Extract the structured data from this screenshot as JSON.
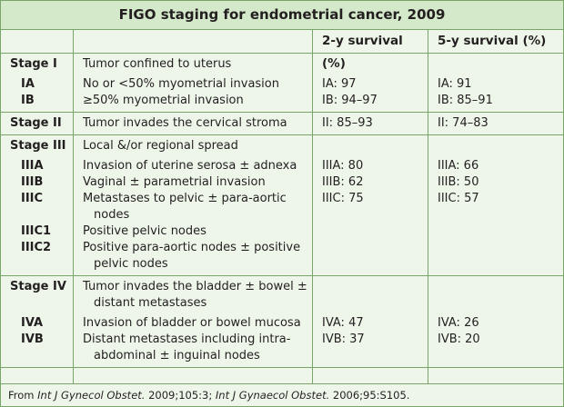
{
  "title": "FIGO staging for endometrial cancer, 2009",
  "columns": [
    "2-y survival (%)",
    "5-y survival (%)"
  ],
  "groups": [
    {
      "stage": "Stage I",
      "description": "Tumor confined to uterus",
      "substages": [
        {
          "stage": "IA",
          "description": "No or <50% myometrial invasion",
          "two_year": "IA: 97",
          "five_year": "IA: 91"
        },
        {
          "stage": "IB",
          "description": "≥50% myometrial invasion",
          "two_year": "IB: 94–97",
          "five_year": "IB: 85–91"
        }
      ]
    },
    {
      "stage": "Stage II",
      "description": "Tumor invades the cervical stroma",
      "two_year": "II: 85–93",
      "five_year": "II: 74–83",
      "substages": []
    },
    {
      "stage": "Stage III",
      "description": "Local &/or regional spread",
      "substages": [
        {
          "stage": "IIIA",
          "description": "Invasion of uterine serosa ± adnexa",
          "two_year": "IIIA: 80",
          "five_year": "IIIA: 66"
        },
        {
          "stage": "IIIB",
          "description": "Vaginal ± parametrial invasion",
          "two_year": "IIIB: 62",
          "five_year": "IIIB: 50"
        },
        {
          "stage": "IIIC",
          "description": "Metastases to pelvic ± para-aortic nodes",
          "two_year": "IIIC: 75",
          "five_year": "IIIC: 57"
        },
        {
          "stage": "IIIC1",
          "description": "Positive pelvic nodes"
        },
        {
          "stage": "IIIC2",
          "description": "Positive para-aortic nodes ± positive pelvic nodes"
        }
      ]
    },
    {
      "stage": "Stage IV",
      "description": "Tumor invades the bladder ± bowel ± distant metastases",
      "substages": [
        {
          "stage": "IVA",
          "description": "Invasion of bladder or bowel mucosa",
          "two_year": "IVA: 47",
          "five_year": "IVA: 26"
        },
        {
          "stage": "IVB",
          "description": "Distant metastases including intra-abdominal ± inguinal nodes",
          "two_year": "IVB: 37",
          "five_year": "IVB: 20"
        }
      ]
    }
  ],
  "footer": [
    "From ",
    "Int J Gynecol Obstet.",
    " 2009;105:3; ",
    "Int J Gynaecol Obstet.",
    " 2006;95:S105."
  ]
}
